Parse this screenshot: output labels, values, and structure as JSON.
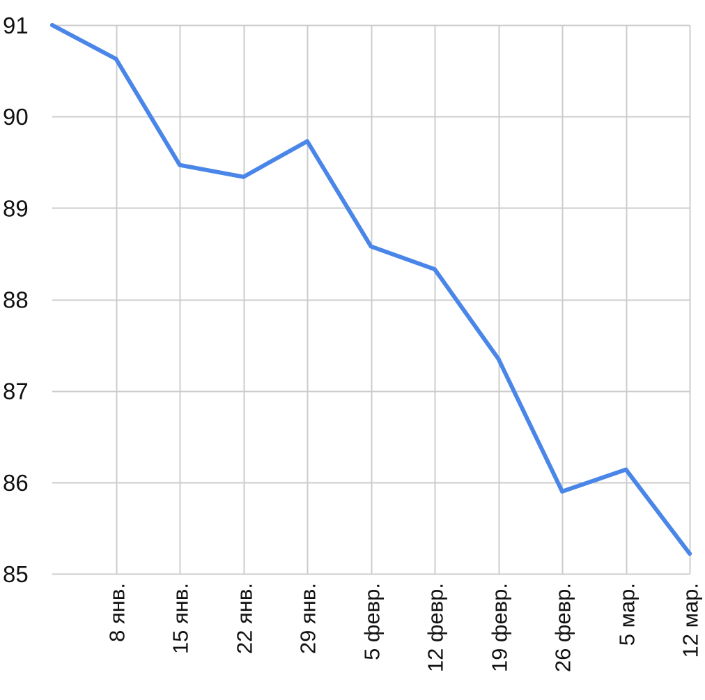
{
  "chart_data": {
    "type": "line",
    "title": "",
    "xlabel": "",
    "ylabel": "",
    "grid": true,
    "legend": "none",
    "ylim": [
      85,
      91
    ],
    "y_ticks": [
      "85",
      "86",
      "87",
      "88",
      "89",
      "90",
      "91"
    ],
    "x_ticks": [
      "8 янв.",
      "15 янв.",
      "22 янв.",
      "29 янв.",
      "5 февр.",
      "12 февр.",
      "19 февр.",
      "26 февр.",
      "5 мар.",
      "12 мар."
    ],
    "x_tick_dates": [
      "01-08",
      "01-15",
      "01-22",
      "01-29",
      "02-05",
      "02-12",
      "02-19",
      "02-26",
      "03-05",
      "03-12"
    ],
    "series": [
      {
        "color": "#4a86e8",
        "x": [
          "01-01",
          "01-08",
          "01-15",
          "01-22",
          "01-29",
          "02-05",
          "02-12",
          "02-19",
          "02-26",
          "03-05",
          "03-12"
        ],
        "y": [
          91.0,
          90.63,
          89.47,
          89.34,
          89.73,
          88.58,
          88.33,
          87.35,
          85.9,
          86.14,
          85.22
        ]
      }
    ]
  }
}
